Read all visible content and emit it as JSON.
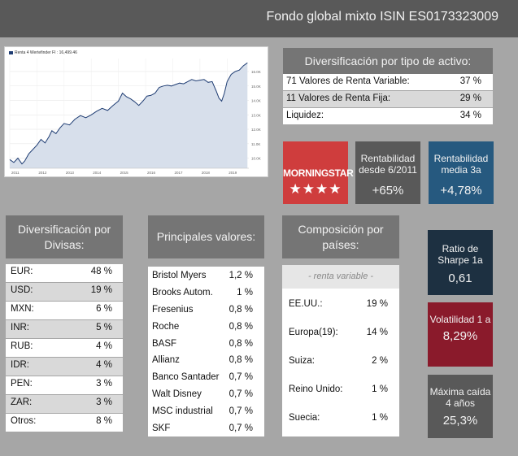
{
  "header": {
    "title": "Fondo global mixto ISIN ES0173323009"
  },
  "chart_data": {
    "type": "area",
    "legend": "Renta 4 Wertefinder FI : 16,499.46",
    "x_ticks": [
      "2011",
      "2012",
      "2013",
      "2014",
      "2015",
      "2016",
      "2017",
      "2018",
      "2019"
    ],
    "y_ticks": [
      "10.0K",
      "11.0K",
      "12.0K",
      "13.0K",
      "14.0K",
      "15.0K",
      "16.0K"
    ],
    "ylim": [
      9300,
      16900
    ],
    "xlim": [
      2011.0,
      2019.8
    ],
    "line_color": "#1f3d73",
    "fill_color": "#d7dfeb",
    "series": [
      {
        "x": [
          2011.0,
          2011.15,
          2011.3,
          2011.45,
          2011.55,
          2011.7,
          2011.85,
          2012.0,
          2012.15,
          2012.3,
          2012.45,
          2012.55,
          2012.7,
          2012.85,
          2013.0,
          2013.2,
          2013.4,
          2013.6,
          2013.8,
          2014.0,
          2014.2,
          2014.4,
          2014.6,
          2014.8,
          2015.0,
          2015.15,
          2015.3,
          2015.45,
          2015.6,
          2015.75,
          2015.9,
          2016.05,
          2016.2,
          2016.35,
          2016.5,
          2016.65,
          2016.8,
          2016.95,
          2017.1,
          2017.25,
          2017.4,
          2017.55,
          2017.7,
          2017.85,
          2018.0,
          2018.15,
          2018.3,
          2018.45,
          2018.6,
          2018.7,
          2018.8,
          2018.9,
          2019.0,
          2019.15,
          2019.3,
          2019.45,
          2019.6,
          2019.75
        ],
        "y": [
          9900,
          9700,
          10000,
          9600,
          9800,
          10300,
          10600,
          10900,
          11300,
          11050,
          11500,
          11900,
          11700,
          12100,
          12400,
          12300,
          12700,
          12950,
          12800,
          13000,
          13250,
          13450,
          13300,
          13650,
          13950,
          14500,
          14250,
          14100,
          13900,
          13650,
          13950,
          14300,
          14350,
          14500,
          14900,
          15000,
          15050,
          15000,
          15100,
          15200,
          15150,
          15300,
          15450,
          15350,
          15400,
          15450,
          15250,
          15300,
          14650,
          14150,
          13950,
          14500,
          15300,
          15800,
          16000,
          16100,
          16400,
          16600
        ]
      }
    ]
  },
  "tipo_activo": {
    "title": "Diversificación por tipo de activo:",
    "rows": [
      {
        "label": "71 Valores de Renta Variable:",
        "value": "37 %"
      },
      {
        "label": "11 Valores de Renta Fija:",
        "value": "29 %"
      },
      {
        "label": "Liquidez:",
        "value": "34 %"
      }
    ]
  },
  "morningstar": {
    "word": "MORNINGSTAR",
    "stars": "★★★★",
    "rating": 4
  },
  "rentabilidad": {
    "label": "Rentabilidad desde 6/2011",
    "value": "+65%"
  },
  "rentabilidad_media": {
    "label": "Rentabilidad media 3a",
    "value": "+4,78%"
  },
  "divisas": {
    "title": "Diversificación por Divisas:",
    "rows": [
      {
        "label": "EUR:",
        "value": "48 %"
      },
      {
        "label": "USD:",
        "value": "19 %"
      },
      {
        "label": "MXN:",
        "value": "6 %"
      },
      {
        "label": "INR:",
        "value": "5 %"
      },
      {
        "label": "RUB:",
        "value": "4 %"
      },
      {
        "label": "IDR:",
        "value": "4 %"
      },
      {
        "label": "PEN:",
        "value": "3 %"
      },
      {
        "label": "ZAR:",
        "value": "3 %"
      },
      {
        "label": "Otros:",
        "value": "8 %"
      }
    ]
  },
  "principales": {
    "title": "Principales valores:",
    "rows": [
      {
        "label": "Bristol Myers",
        "value": "1,2 %"
      },
      {
        "label": "Brooks Autom.",
        "value": "1 %"
      },
      {
        "label": "Fresenius",
        "value": "0,8 %"
      },
      {
        "label": "Roche",
        "value": "0,8 %"
      },
      {
        "label": "BASF",
        "value": "0,8 %"
      },
      {
        "label": "Allianz",
        "value": "0,8 %"
      },
      {
        "label": "Banco Santader",
        "value": "0,7 %"
      },
      {
        "label": "Walt Disney",
        "value": "0,7 %"
      },
      {
        "label": "MSC industrial",
        "value": "0,7 %"
      },
      {
        "label": "SKF",
        "value": "0,7 %"
      }
    ]
  },
  "composicion": {
    "title": "Composición por países:",
    "subtitle": "- renta variable -",
    "rows": [
      {
        "label": "EE.UU.:",
        "value": "19 %"
      },
      {
        "label": "Europa(19):",
        "value": "14 %"
      },
      {
        "label": "Suiza:",
        "value": "2 %"
      },
      {
        "label": "Reino Unido:",
        "value": "1 %"
      },
      {
        "label": "Suecia:",
        "value": "1 %"
      }
    ]
  },
  "sharpe": {
    "label": "Ratio de Sharpe 1a",
    "value": "0,61"
  },
  "volatilidad": {
    "label": "Volatilidad 1 a",
    "value": "8,29%"
  },
  "maxima": {
    "label": "Máxima caída 4 años",
    "value": "25,3%"
  }
}
